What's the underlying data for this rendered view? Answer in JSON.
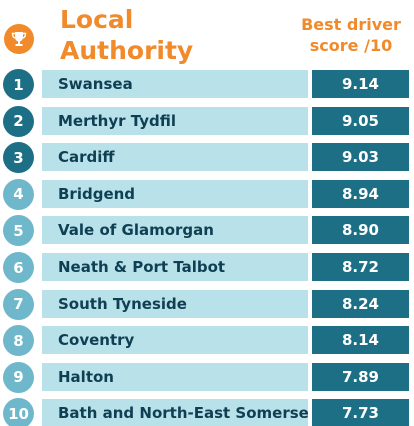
{
  "header": {
    "title_line1": "Local",
    "title_line2": "Authority",
    "score_line1": "Best driver",
    "score_line2": "score /10",
    "icon": "trophy-icon"
  },
  "colors": {
    "accent": "#f08a2a",
    "dark_teal": "#1d6f86",
    "light_teal": "#6fb7cb",
    "row_bg": "#b9e1ea",
    "text": "#0f3f52"
  },
  "chart_data": {
    "type": "table",
    "columns": [
      "Local Authority",
      "Best driver score /10"
    ],
    "rows": [
      {
        "rank": "1",
        "name": "Swansea",
        "score": "9.14"
      },
      {
        "rank": "2",
        "name": "Merthyr Tydfil",
        "score": "9.05"
      },
      {
        "rank": "3",
        "name": "Cardiff",
        "score": "9.03"
      },
      {
        "rank": "4",
        "name": "Bridgend",
        "score": "8.94"
      },
      {
        "rank": "5",
        "name": "Vale of Glamorgan",
        "score": "8.90"
      },
      {
        "rank": "6",
        "name": "Neath & Port Talbot",
        "score": "8.72"
      },
      {
        "rank": "7",
        "name": "South Tyneside",
        "score": "8.24"
      },
      {
        "rank": "8",
        "name": "Coventry",
        "score": "8.14"
      },
      {
        "rank": "9",
        "name": "Halton",
        "score": "7.89"
      },
      {
        "rank": "10",
        "name": "Bath and North-East Somerset",
        "score": "7.73"
      }
    ]
  }
}
